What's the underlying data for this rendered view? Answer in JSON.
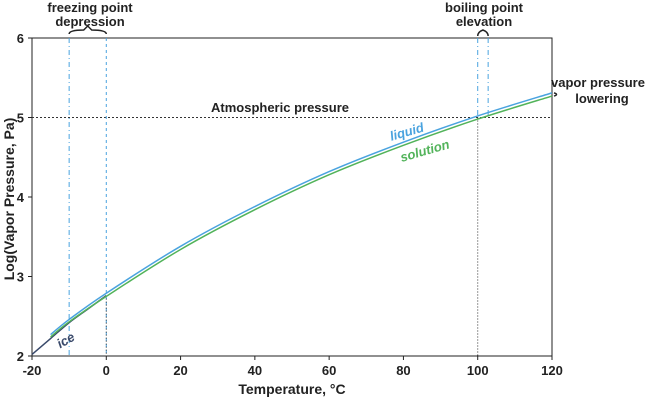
{
  "chart_data": {
    "type": "line",
    "title": "",
    "xlabel": "Temperature, °C",
    "ylabel": "Log(Vapor Pressure, Pa)",
    "xlim": [
      -20,
      120
    ],
    "ylim": [
      2,
      6
    ],
    "x_ticks": [
      "-20",
      "0",
      "20",
      "40",
      "60",
      "80",
      "100",
      "120"
    ],
    "y_ticks": [
      "2",
      "3",
      "4",
      "5",
      "6"
    ],
    "grid": false,
    "legend": "none",
    "series": [
      {
        "name": "ice",
        "color": "#3a4a6b",
        "x": [
          -20,
          -15,
          -10,
          -5,
          0
        ],
        "y": [
          2.02,
          2.22,
          2.42,
          2.59,
          2.76
        ]
      },
      {
        "name": "liquid",
        "color": "#4aa3df",
        "x": [
          -15,
          -10,
          0,
          20,
          40,
          60,
          80,
          100,
          120
        ],
        "y": [
          2.27,
          2.46,
          2.79,
          3.38,
          3.88,
          4.32,
          4.69,
          5.02,
          5.31
        ]
      },
      {
        "name": "solution",
        "color": "#52b35a",
        "x": [
          -15,
          -10,
          0,
          20,
          40,
          60,
          80,
          100,
          120
        ],
        "y": [
          2.24,
          2.43,
          2.75,
          3.34,
          3.84,
          4.28,
          4.65,
          4.98,
          5.27
        ]
      }
    ],
    "reference_lines": {
      "atmospheric_y": 5.0,
      "freezing_x": [
        -10,
        0
      ],
      "boiling_x": [
        100,
        102
      ]
    },
    "annotations": {
      "atmospheric": "Atmospheric pressure",
      "freezing_line1": "freezing point",
      "freezing_line2": "depression",
      "boiling_line1": "boiling point",
      "boiling_line2": "elevation",
      "lowering_line1": "vapor pressure",
      "lowering_line2": "lowering"
    },
    "colors": {
      "axis": "#222222",
      "guide_blue": "#4aa3df",
      "guide_dark": "#333333"
    }
  }
}
